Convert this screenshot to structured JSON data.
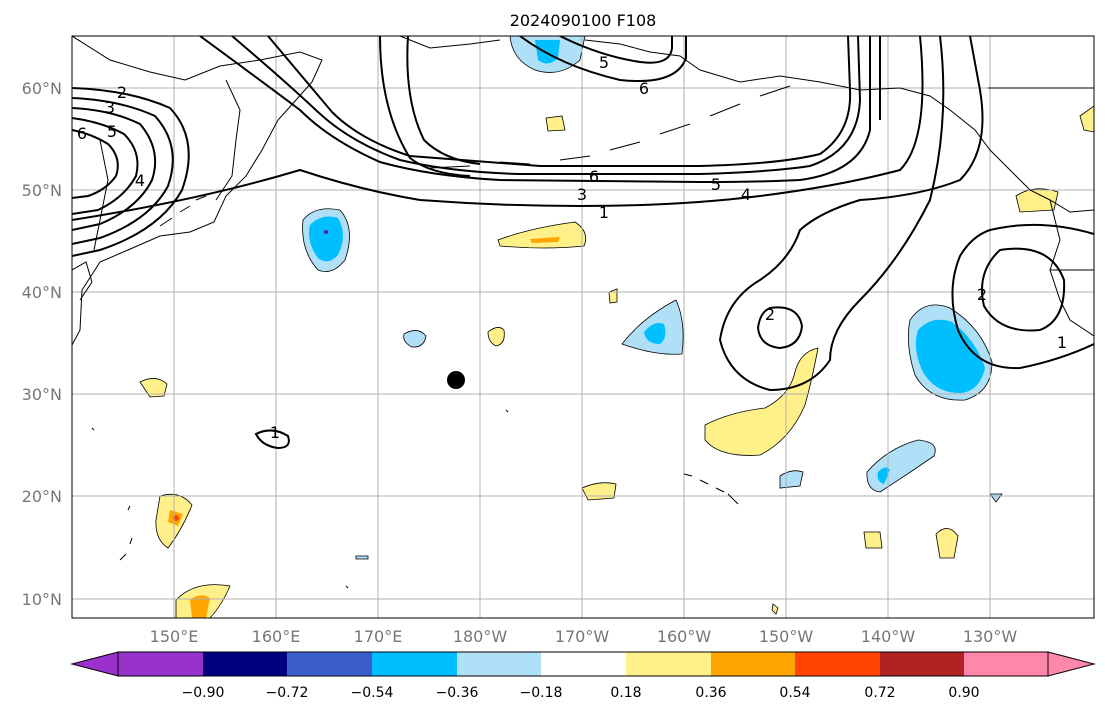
{
  "title": "2024090100 F108",
  "map": {
    "lat_labels": [
      "60°N",
      "50°N",
      "40°N",
      "30°N",
      "20°N",
      "10°N"
    ],
    "lon_labels": [
      "150°E",
      "160°E",
      "170°E",
      "180°W",
      "170°W",
      "160°W",
      "150°W",
      "140°W",
      "130°W"
    ],
    "contour_labels": [
      "2",
      "3",
      "5",
      "6",
      "4",
      "5",
      "6",
      "6",
      "5",
      "4",
      "3",
      "1",
      "2",
      "2",
      "1",
      "1"
    ],
    "colors": {
      "pos_018": "#fff08a",
      "pos_036": "#ffa500",
      "neg_018": "#b0e0f8",
      "neg_036": "#00bfff",
      "neg_054": "#3a5fcd",
      "neg_072": "#5020b0",
      "contour": "#000000",
      "grid": "#b0b0b0",
      "coast": "#000000"
    }
  },
  "colorbar": {
    "labels": [
      "−0.90",
      "−0.72",
      "−0.54",
      "−0.36",
      "−0.18",
      "0.18",
      "0.36",
      "0.54",
      "0.72",
      "0.90"
    ],
    "colors": [
      "#9932cc",
      "#000080",
      "#3a5fcd",
      "#00bfff",
      "#b0e0f8",
      "#ffffff",
      "#fff08a",
      "#ffa500",
      "#ff4500",
      "#b22222",
      "#ff88aa"
    ]
  }
}
